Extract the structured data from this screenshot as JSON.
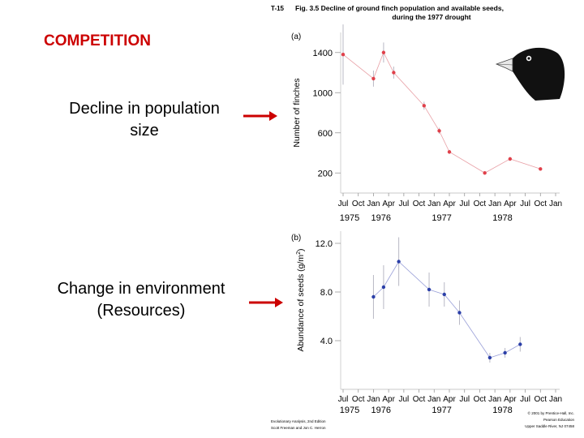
{
  "slide": {
    "heading": "COMPETITION",
    "label_decline_line1": "Decline in population",
    "label_decline_line2": "size",
    "label_change_line1": "Change in environment",
    "label_change_line2": "(Resources)"
  },
  "figure": {
    "code": "T-15",
    "title_line1": "Fig. 3.5  Decline of ground finch population and available seeds,",
    "title_line2": "during the 1977 drought",
    "credit_left_line1": "Evolutionary Analysis, 2nd Edition",
    "credit_left_line2": "Scott Freeman and Jon C. Herron",
    "credit_right_line1": "© 2001 by Prentice-Hall, Inc.",
    "credit_right_line2": "Pearson Education",
    "credit_right_line3": "Upper Saddle River, NJ 07458"
  },
  "colors": {
    "heading": "#cc0000",
    "arrow": "#cc0000",
    "finch_series": "#e0404a",
    "seed_series": "#2b3fa8",
    "error_bar": "#b8b8c4"
  },
  "chart_data": [
    {
      "type": "line",
      "panel_label": "(a)",
      "ylabel": "Number of finches",
      "yticks": [
        200,
        600,
        1000,
        1400
      ],
      "ylim": [
        0,
        1600
      ],
      "x_tick_labels": [
        "Jul",
        "Oct",
        "Jan",
        "Apr",
        "Jul",
        "Oct",
        "Jan",
        "Apr",
        "Jul",
        "Oct",
        "Jan",
        "Apr",
        "Jul",
        "Oct",
        "Jan"
      ],
      "x_year_labels": [
        "1975",
        "1976",
        "1977",
        "1978"
      ],
      "x_range_months": [
        0,
        42
      ],
      "series": [
        {
          "x": [
            0,
            6,
            8,
            10,
            16,
            19,
            21,
            28,
            33,
            39
          ],
          "values": [
            1380,
            1140,
            1400,
            1200,
            870,
            620,
            410,
            200,
            340,
            240
          ],
          "error": [
            300,
            80,
            100,
            60,
            40,
            30,
            20,
            10,
            20,
            10
          ]
        }
      ]
    },
    {
      "type": "line",
      "panel_label": "(b)",
      "ylabel": "Abundance of seeds (g/m",
      "ylabel_sup": "2",
      "ylabel_end": ")",
      "yticks": [
        "4.0",
        "8.0",
        "12.0"
      ],
      "ylim": [
        0,
        13
      ],
      "x_tick_labels": [
        "Jul",
        "Oct",
        "Jan",
        "Apr",
        "Jul",
        "Oct",
        "Jan",
        "Apr",
        "Jul",
        "Oct",
        "Jan",
        "Apr",
        "Jul",
        "Oct",
        "Jan"
      ],
      "x_year_labels": [
        "1975",
        "1976",
        "1977",
        "1978"
      ],
      "x_range_months": [
        0,
        42
      ],
      "series": [
        {
          "x": [
            6,
            8,
            11,
            17,
            20,
            23,
            29,
            32,
            35
          ],
          "values": [
            7.6,
            8.4,
            10.5,
            8.2,
            7.8,
            6.3,
            2.6,
            3.0,
            3.7
          ],
          "error": [
            1.8,
            1.8,
            2.0,
            1.4,
            1.0,
            1.0,
            0.4,
            0.4,
            0.6
          ]
        }
      ]
    }
  ]
}
